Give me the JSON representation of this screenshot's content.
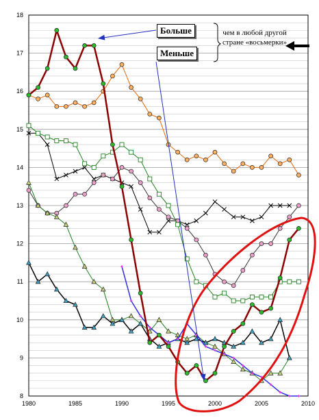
{
  "annotations": {
    "more_label": "Больше",
    "less_label": "Меньше",
    "note_line1": "чем в любой другой",
    "note_line2": "стране «восьмерки»"
  },
  "colors": {
    "grid": "#c8c8c8",
    "highlight": "#e01010",
    "arrow": "#2030c0"
  },
  "chart_data": {
    "type": "line",
    "title": "",
    "xlabel": "",
    "ylabel": "",
    "xlim": [
      1980,
      2010
    ],
    "ylim": [
      8,
      18
    ],
    "x_ticks": [
      1980,
      1985,
      1990,
      1995,
      2000,
      2005,
      2010
    ],
    "y_ticks": [
      8,
      9,
      10,
      11,
      12,
      13,
      14,
      15,
      16,
      17,
      18
    ],
    "grid": true,
    "series": [
      {
        "color": "#e8640a",
        "marker": "circle",
        "marker_fill": "#ffb060",
        "width": 1,
        "points": [
          [
            1980,
            15.9
          ],
          [
            1981,
            15.8
          ],
          [
            1982,
            15.9
          ],
          [
            1983,
            15.6
          ],
          [
            1984,
            15.6
          ],
          [
            1985,
            15.7
          ],
          [
            1986,
            15.6
          ],
          [
            1987,
            15.7
          ],
          [
            1988,
            16.0
          ],
          [
            1989,
            16.4
          ],
          [
            1990,
            16.7
          ],
          [
            1991,
            16.1
          ],
          [
            1992,
            15.8
          ],
          [
            1993,
            15.4
          ],
          [
            1994,
            15.3
          ],
          [
            1995,
            14.6
          ],
          [
            1996,
            14.4
          ],
          [
            1997,
            14.2
          ],
          [
            1998,
            14.3
          ],
          [
            1999,
            14.2
          ],
          [
            2000,
            14.4
          ],
          [
            2001,
            14.1
          ],
          [
            2002,
            13.9
          ],
          [
            2003,
            14.1
          ],
          [
            2004,
            14.0
          ],
          [
            2005,
            14.0
          ],
          [
            2006,
            14.3
          ],
          [
            2007,
            14.1
          ],
          [
            2008,
            14.2
          ],
          [
            2009,
            13.8
          ]
        ]
      },
      {
        "color": "#000000",
        "marker": "x",
        "marker_fill": "none",
        "width": 1,
        "points": [
          [
            1980,
            14.9
          ],
          [
            1981,
            14.9
          ],
          [
            1982,
            14.6
          ],
          [
            1983,
            13.7
          ],
          [
            1984,
            13.8
          ],
          [
            1985,
            13.9
          ],
          [
            1986,
            14.0
          ],
          [
            1987,
            13.7
          ],
          [
            1988,
            13.8
          ],
          [
            1989,
            13.7
          ],
          [
            1990,
            13.6
          ],
          [
            1991,
            13.5
          ],
          [
            1992,
            12.9
          ],
          [
            1993,
            12.3
          ],
          [
            1994,
            12.3
          ],
          [
            1995,
            12.6
          ],
          [
            1996,
            12.6
          ],
          [
            1997,
            12.5
          ],
          [
            1998,
            12.6
          ],
          [
            1999,
            12.8
          ],
          [
            2000,
            13.1
          ],
          [
            2001,
            12.9
          ],
          [
            2002,
            12.7
          ],
          [
            2003,
            12.7
          ],
          [
            2004,
            12.6
          ],
          [
            2005,
            12.7
          ],
          [
            2006,
            13.0
          ],
          [
            2007,
            13.0
          ],
          [
            2008,
            13.0
          ]
        ]
      },
      {
        "color": "#333333",
        "marker": "circle",
        "marker_fill": "#e8a0c8",
        "width": 1,
        "points": [
          [
            1980,
            13.4
          ],
          [
            1981,
            13.0
          ],
          [
            1982,
            12.8
          ],
          [
            1983,
            12.8
          ],
          [
            1984,
            13.0
          ],
          [
            1985,
            13.3
          ],
          [
            1986,
            13.3
          ],
          [
            1987,
            13.6
          ],
          [
            1988,
            13.8
          ],
          [
            1989,
            13.7
          ],
          [
            1990,
            14.0
          ],
          [
            1991,
            13.9
          ],
          [
            1992,
            13.6
          ],
          [
            1993,
            13.2
          ],
          [
            1994,
            12.9
          ],
          [
            1995,
            12.7
          ],
          [
            1996,
            12.6
          ],
          [
            1997,
            12.4
          ],
          [
            1998,
            12.1
          ],
          [
            1999,
            11.7
          ],
          [
            2000,
            11.2
          ],
          [
            2001,
            11.0
          ],
          [
            2002,
            10.9
          ],
          [
            2003,
            11.3
          ],
          [
            2004,
            11.7
          ],
          [
            2005,
            12.0
          ],
          [
            2006,
            12.0
          ],
          [
            2007,
            12.4
          ],
          [
            2008,
            12.7
          ],
          [
            2009,
            13.0
          ]
        ]
      },
      {
        "color": "#208020",
        "marker": "square",
        "marker_fill": "#ffffff",
        "width": 1,
        "points": [
          [
            1980,
            15.1
          ],
          [
            1981,
            14.9
          ],
          [
            1982,
            14.8
          ],
          [
            1983,
            14.7
          ],
          [
            1984,
            14.7
          ],
          [
            1985,
            14.6
          ],
          [
            1986,
            14.1
          ],
          [
            1987,
            14.0
          ],
          [
            1988,
            14.3
          ],
          [
            1989,
            14.4
          ],
          [
            1990,
            14.6
          ],
          [
            1991,
            14.4
          ],
          [
            1992,
            14.2
          ],
          [
            1993,
            13.7
          ],
          [
            1994,
            13.3
          ],
          [
            1995,
            13.0
          ],
          [
            1996,
            12.5
          ],
          [
            1997,
            11.6
          ],
          [
            1998,
            11.0
          ],
          [
            1999,
            10.9
          ],
          [
            2000,
            10.6
          ],
          [
            2001,
            10.7
          ],
          [
            2002,
            10.5
          ],
          [
            2003,
            10.5
          ],
          [
            2004,
            10.6
          ],
          [
            2005,
            10.6
          ],
          [
            2006,
            10.6
          ],
          [
            2007,
            11.0
          ],
          [
            2008,
            11.0
          ],
          [
            2009,
            11.0
          ]
        ]
      },
      {
        "color": "#208020",
        "marker": "triangle",
        "marker_fill": "#c8d080",
        "width": 1,
        "points": [
          [
            1980,
            13.6
          ],
          [
            1981,
            13.0
          ],
          [
            1982,
            12.8
          ],
          [
            1983,
            12.7
          ],
          [
            1984,
            12.5
          ],
          [
            1985,
            11.9
          ],
          [
            1986,
            11.4
          ],
          [
            1987,
            11.0
          ],
          [
            1988,
            10.8
          ],
          [
            1989,
            10.0
          ],
          [
            1990,
            10.0
          ],
          [
            1991,
            10.1
          ],
          [
            1992,
            9.9
          ],
          [
            1993,
            9.7
          ],
          [
            1994,
            10.0
          ],
          [
            1995,
            9.7
          ],
          [
            1996,
            9.6
          ],
          [
            1997,
            9.5
          ],
          [
            1998,
            9.6
          ],
          [
            1999,
            9.4
          ],
          [
            2000,
            9.3
          ],
          [
            2001,
            9.1
          ],
          [
            2002,
            8.9
          ],
          [
            2003,
            8.7
          ],
          [
            2004,
            8.6
          ],
          [
            2005,
            8.4
          ],
          [
            2006,
            8.6
          ],
          [
            2007,
            8.6
          ],
          [
            2008,
            9.0
          ]
        ]
      },
      {
        "color": "#000000",
        "marker": "triangle",
        "marker_fill": "#40a0c0",
        "width": 1.5,
        "points": [
          [
            1980,
            11.5
          ],
          [
            1981,
            11.0
          ],
          [
            1982,
            11.2
          ],
          [
            1983,
            10.8
          ],
          [
            1984,
            10.5
          ],
          [
            1985,
            10.4
          ],
          [
            1986,
            9.8
          ],
          [
            1987,
            9.8
          ],
          [
            1988,
            10.1
          ],
          [
            1989,
            9.9
          ],
          [
            1990,
            10.0
          ],
          [
            1991,
            9.7
          ],
          [
            1992,
            9.9
          ],
          [
            1993,
            9.5
          ],
          [
            1994,
            9.3
          ],
          [
            1995,
            9.4
          ],
          [
            1996,
            9.5
          ],
          [
            1997,
            9.4
          ],
          [
            1998,
            9.5
          ],
          [
            1999,
            9.4
          ],
          [
            2000,
            9.5
          ],
          [
            2001,
            9.4
          ],
          [
            2002,
            9.3
          ],
          [
            2003,
            9.4
          ],
          [
            2004,
            9.7
          ],
          [
            2005,
            9.4
          ],
          [
            2006,
            9.5
          ],
          [
            2007,
            10.0
          ],
          [
            2008,
            9.0
          ]
        ]
      },
      {
        "color": "#3030e0",
        "marker": "diamond",
        "marker_fill": "#e040e0",
        "width": 1.5,
        "points": [
          [
            1990,
            11.4
          ],
          [
            1991,
            10.5
          ],
          [
            1992,
            10.1
          ],
          [
            1993,
            9.8
          ],
          [
            1994,
            9.6
          ],
          [
            1995,
            9.4
          ],
          [
            1996,
            9.5
          ],
          [
            1997,
            9.9
          ],
          [
            1998,
            9.6
          ],
          [
            1999,
            9.3
          ],
          [
            2000,
            9.2
          ],
          [
            2001,
            9.1
          ],
          [
            2002,
            9.0
          ],
          [
            2003,
            8.8
          ],
          [
            2004,
            8.6
          ],
          [
            2005,
            8.5
          ],
          [
            2006,
            8.3
          ],
          [
            2007,
            8.1
          ],
          [
            2008,
            8.0
          ],
          [
            2009,
            8.0
          ]
        ]
      },
      {
        "color": "#8b0000",
        "marker": "circle",
        "marker_fill": "#2eb82e",
        "width": 2.5,
        "points": [
          [
            1980,
            15.9
          ],
          [
            1981,
            16.1
          ],
          [
            1982,
            16.6
          ],
          [
            1983,
            17.6
          ],
          [
            1984,
            16.9
          ],
          [
            1985,
            16.6
          ],
          [
            1986,
            17.2
          ],
          [
            1987,
            17.2
          ],
          [
            1988,
            16.2
          ],
          [
            1989,
            14.6
          ],
          [
            1990,
            13.5
          ],
          [
            1991,
            12.1
          ],
          [
            1992,
            10.7
          ],
          [
            1993,
            9.4
          ],
          [
            1994,
            9.6
          ],
          [
            1995,
            9.3
          ],
          [
            1996,
            8.9
          ],
          [
            1997,
            8.6
          ],
          [
            1998,
            8.8
          ],
          [
            1999,
            8.4
          ],
          [
            2000,
            8.6
          ],
          [
            2001,
            9.3
          ],
          [
            2002,
            9.7
          ],
          [
            2003,
            9.9
          ],
          [
            2004,
            10.4
          ],
          [
            2005,
            10.2
          ],
          [
            2006,
            10.3
          ],
          [
            2007,
            11.1
          ],
          [
            2008,
            12.1
          ],
          [
            2009,
            12.4
          ]
        ]
      }
    ]
  }
}
